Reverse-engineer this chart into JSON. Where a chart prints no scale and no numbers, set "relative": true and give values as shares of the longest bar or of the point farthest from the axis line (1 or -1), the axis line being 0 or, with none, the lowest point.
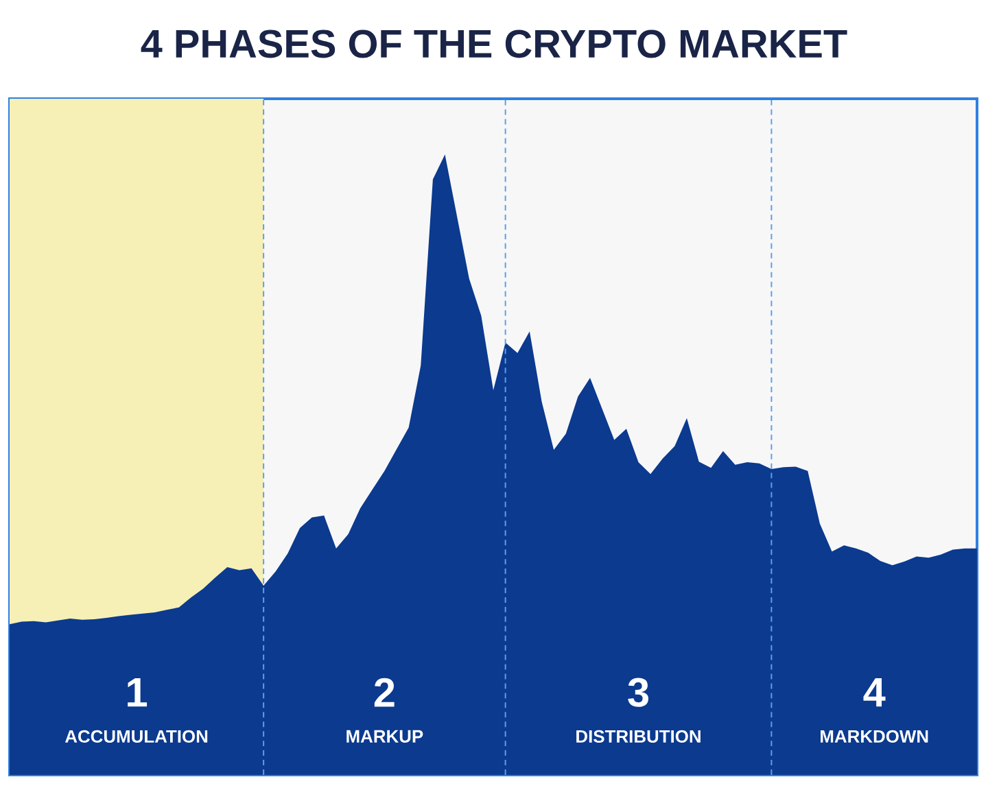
{
  "chart_data": {
    "type": "area",
    "title": "4 PHASES OF THE CRYPTO MARKET",
    "relative": true,
    "tick_labels": false,
    "categories": [
      null,
      null,
      null,
      null,
      null,
      null,
      null,
      null,
      null,
      null,
      null,
      null,
      null,
      null,
      null,
      null,
      null,
      null,
      null,
      null,
      null,
      null,
      null,
      null,
      null,
      null,
      null,
      null,
      null,
      null,
      null,
      null,
      null,
      null,
      null,
      null,
      null,
      null,
      null,
      null,
      null,
      null,
      null,
      null,
      null,
      null,
      null,
      null,
      null,
      null,
      null,
      null,
      null,
      null,
      null,
      null,
      null,
      null,
      null,
      null,
      null,
      null,
      null,
      null,
      null,
      null,
      null,
      null,
      null,
      null,
      null,
      null,
      null,
      null,
      null,
      null,
      null,
      null,
      null,
      null,
      null
    ],
    "series": [
      {
        "color": "#0b3a8f",
        "values": [
          0.243,
          0.247,
          0.248,
          0.246,
          0.249,
          0.252,
          0.25,
          0.251,
          0.253,
          0.256,
          0.258,
          0.26,
          0.262,
          0.266,
          0.27,
          0.286,
          0.3,
          0.318,
          0.335,
          0.33,
          0.333,
          0.305,
          0.328,
          0.357,
          0.398,
          0.415,
          0.418,
          0.365,
          0.388,
          0.43,
          0.46,
          0.49,
          0.525,
          0.56,
          0.66,
          0.96,
          1,
          0.9,
          0.8,
          0.74,
          0.62,
          0.697,
          0.68,
          0.715,
          0.602,
          0.524,
          0.55,
          0.61,
          0.64,
          0.59,
          0.54,
          0.558,
          0.504,
          0.485,
          0.51,
          0.53,
          0.575,
          0.505,
          0.495,
          0.522,
          0.5,
          0.504,
          0.502,
          0.493,
          0.496,
          0.497,
          0.49,
          0.405,
          0.36,
          0.37,
          0.365,
          0.358,
          0.345,
          0.338,
          0.344,
          0.352,
          0.35,
          0.355,
          0.363,
          0.365,
          0.365
        ]
      }
    ],
    "grid": "x",
    "annotations": [
      "1",
      "ACCUMULATION",
      "2",
      "MARKUP",
      "3",
      "DISTRIBUTION",
      "4",
      "MARKDOWN"
    ]
  }
}
